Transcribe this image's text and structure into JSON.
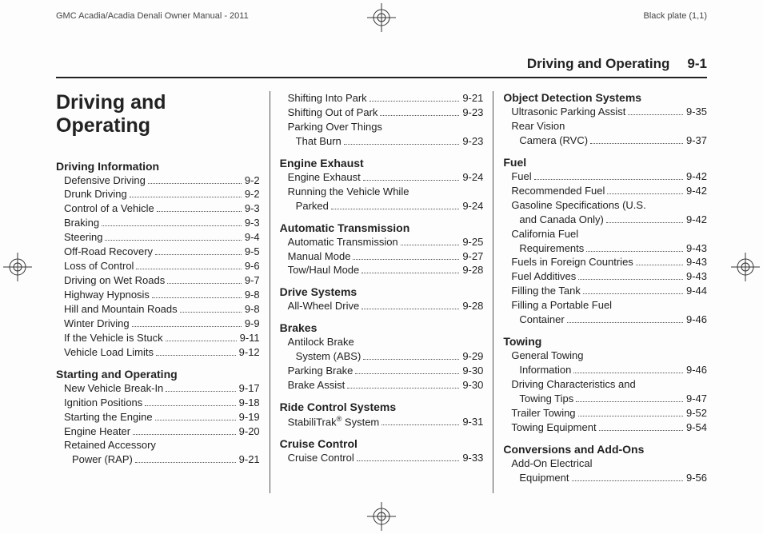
{
  "print": {
    "left": "GMC Acadia/Acadia Denali Owner Manual - 2011",
    "right": "Black plate (1,1)"
  },
  "header": {
    "title": "Driving and Operating",
    "page": "9-1"
  },
  "chapter": "Driving and Operating",
  "columns": [
    [
      {
        "title": "Driving Information",
        "items": [
          [
            "Defensive Driving",
            "9-2"
          ],
          [
            "Drunk Driving",
            "9-2"
          ],
          [
            "Control of a Vehicle",
            "9-3"
          ],
          [
            "Braking",
            "9-3"
          ],
          [
            "Steering",
            "9-4"
          ],
          [
            "Off-Road Recovery",
            "9-5"
          ],
          [
            "Loss of Control",
            "9-6"
          ],
          [
            "Driving on Wet Roads",
            "9-7"
          ],
          [
            "Highway Hypnosis",
            "9-8"
          ],
          [
            "Hill and Mountain Roads",
            "9-8"
          ],
          [
            "Winter Driving",
            "9-9"
          ],
          [
            "If the Vehicle is Stuck",
            "9-11"
          ],
          [
            "Vehicle Load Limits",
            "9-12"
          ]
        ]
      },
      {
        "title": "Starting and Operating",
        "items": [
          [
            "New Vehicle Break-In",
            "9-17"
          ],
          [
            "Ignition Positions",
            "9-18"
          ],
          [
            "Starting the Engine",
            "9-19"
          ],
          [
            "Engine Heater",
            "9-20"
          ],
          [
            "Retained Accessory",
            null
          ],
          [
            "Power (RAP)",
            "9-21",
            "cont"
          ]
        ]
      }
    ],
    [
      {
        "title": null,
        "items": [
          [
            "Shifting Into Park",
            "9-21"
          ],
          [
            "Shifting Out of Park",
            "9-23"
          ],
          [
            "Parking Over Things",
            null
          ],
          [
            "That Burn",
            "9-23",
            "cont"
          ]
        ]
      },
      {
        "title": "Engine Exhaust",
        "items": [
          [
            "Engine Exhaust",
            "9-24"
          ],
          [
            "Running the Vehicle While",
            null
          ],
          [
            "Parked",
            "9-24",
            "cont"
          ]
        ]
      },
      {
        "title": "Automatic Transmission",
        "items": [
          [
            "Automatic Transmission",
            "9-25"
          ],
          [
            "Manual Mode",
            "9-27"
          ],
          [
            "Tow/Haul Mode",
            "9-28"
          ]
        ]
      },
      {
        "title": "Drive Systems",
        "items": [
          [
            "All-Wheel Drive",
            "9-28"
          ]
        ]
      },
      {
        "title": "Brakes",
        "items": [
          [
            "Antilock Brake",
            null
          ],
          [
            "System (ABS)",
            "9-29",
            "cont"
          ],
          [
            "Parking Brake",
            "9-30"
          ],
          [
            "Brake Assist",
            "9-30"
          ]
        ]
      },
      {
        "title": "Ride Control Systems",
        "items": [
          [
            "StabiliTrak® System",
            "9-31"
          ]
        ]
      },
      {
        "title": "Cruise Control",
        "items": [
          [
            "Cruise Control",
            "9-33"
          ]
        ]
      }
    ],
    [
      {
        "title": "Object Detection Systems",
        "items": [
          [
            "Ultrasonic Parking Assist",
            "9-35"
          ],
          [
            "Rear Vision",
            null
          ],
          [
            "Camera (RVC)",
            "9-37",
            "cont"
          ]
        ]
      },
      {
        "title": "Fuel",
        "items": [
          [
            "Fuel",
            "9-42"
          ],
          [
            "Recommended Fuel",
            "9-42"
          ],
          [
            "Gasoline Specifications (U.S.",
            null
          ],
          [
            "and Canada Only)",
            "9-42",
            "cont"
          ],
          [
            "California Fuel",
            null
          ],
          [
            "Requirements",
            "9-43",
            "cont"
          ],
          [
            "Fuels in Foreign Countries",
            "9-43"
          ],
          [
            "Fuel Additives",
            "9-43"
          ],
          [
            "Filling the Tank",
            "9-44"
          ],
          [
            "Filling a Portable Fuel",
            null
          ],
          [
            "Container",
            "9-46",
            "cont"
          ]
        ]
      },
      {
        "title": "Towing",
        "items": [
          [
            "General Towing",
            null
          ],
          [
            "Information",
            "9-46",
            "cont"
          ],
          [
            "Driving Characteristics and",
            null
          ],
          [
            "Towing Tips",
            "9-47",
            "cont"
          ],
          [
            "Trailer Towing",
            "9-52"
          ],
          [
            "Towing Equipment",
            "9-54"
          ]
        ]
      },
      {
        "title": "Conversions and Add-Ons",
        "items": [
          [
            "Add-On Electrical",
            null
          ],
          [
            "Equipment",
            "9-56",
            "cont"
          ]
        ]
      }
    ]
  ]
}
